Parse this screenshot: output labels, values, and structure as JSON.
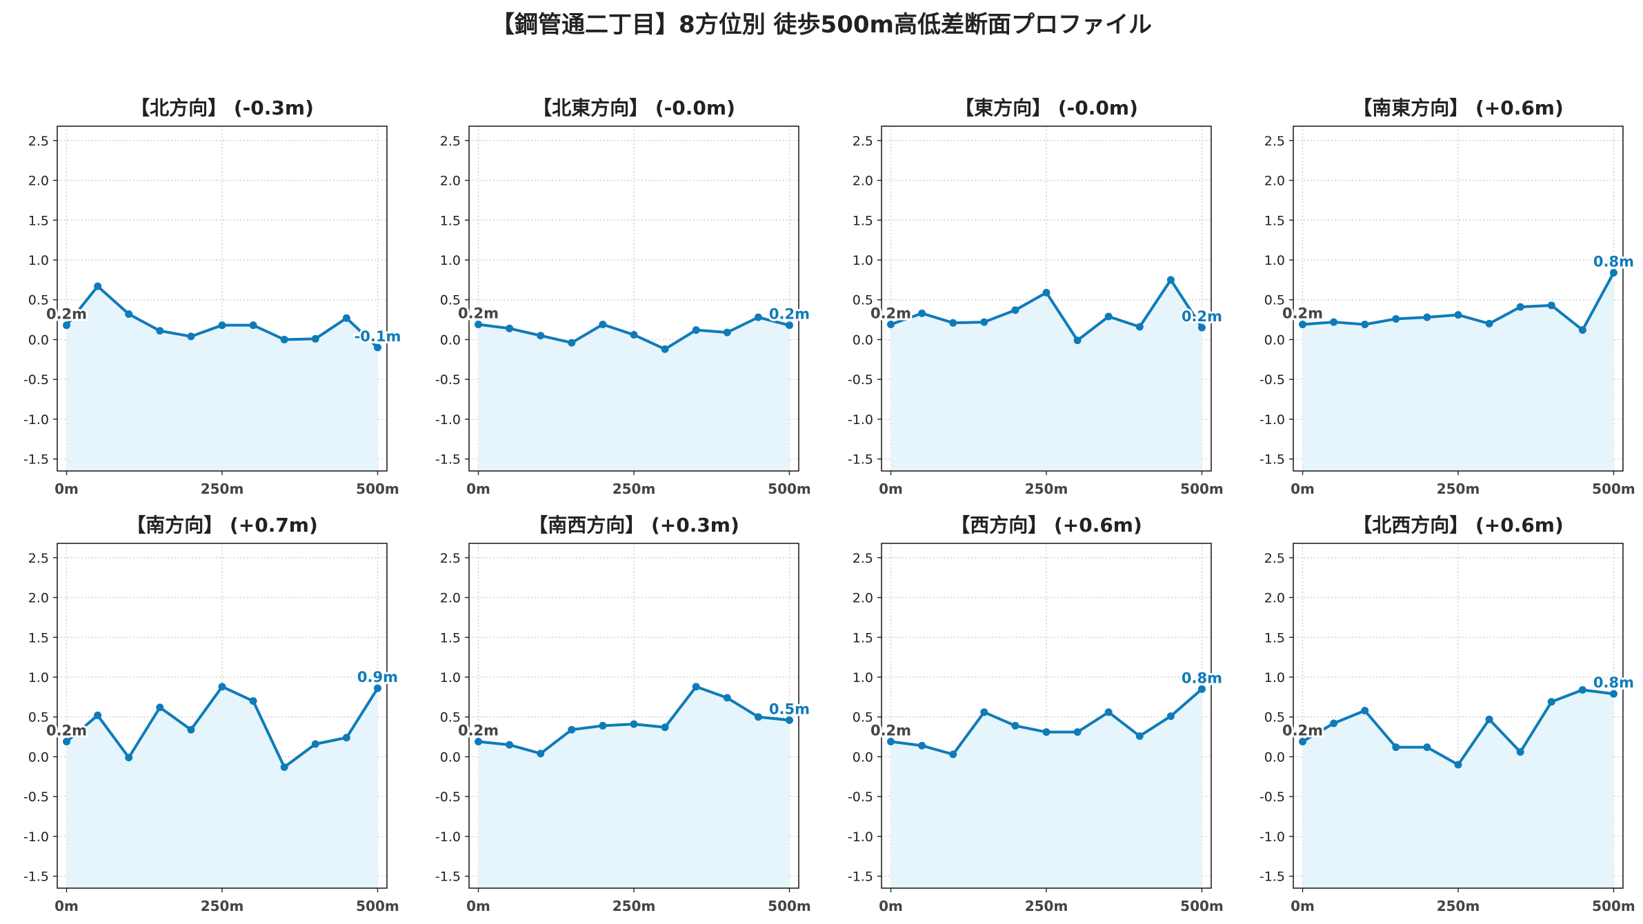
{
  "title": "【鋼管通二丁目】8方位別 徒歩500m高低差断面プロファイル",
  "colors": {
    "line": "#0f7bb8",
    "fill": "#e6f5fb",
    "grid": "#c8c8c8",
    "frame": "#222222"
  },
  "chart_data": [
    {
      "type": "area",
      "title": "【北方向】 (-0.3m)",
      "x": [
        0,
        50,
        100,
        150,
        200,
        250,
        300,
        350,
        400,
        450,
        500
      ],
      "values": [
        0.18,
        0.67,
        0.32,
        0.11,
        0.04,
        0.18,
        0.18,
        0.0,
        0.01,
        0.27,
        -0.1
      ],
      "start_label": "0.2m",
      "end_label": "-0.1m",
      "x_ticks": [
        "0m",
        "250m",
        "500m"
      ],
      "y_ticks": [
        "-1.5",
        "-1.0",
        "-0.5",
        "0.0",
        "0.5",
        "1.0",
        "1.5",
        "2.0",
        "2.5"
      ],
      "xlim": [
        -15,
        515
      ],
      "ylim": [
        -1.65,
        2.68
      ],
      "grid": true
    },
    {
      "type": "area",
      "title": "【北東方向】 (-0.0m)",
      "x": [
        0,
        50,
        100,
        150,
        200,
        250,
        300,
        350,
        400,
        450,
        500
      ],
      "values": [
        0.19,
        0.14,
        0.05,
        -0.04,
        0.19,
        0.06,
        -0.12,
        0.12,
        0.09,
        0.28,
        0.18
      ],
      "start_label": "0.2m",
      "end_label": "0.2m",
      "x_ticks": [
        "0m",
        "250m",
        "500m"
      ],
      "y_ticks": [
        "-1.5",
        "-1.0",
        "-0.5",
        "0.0",
        "0.5",
        "1.0",
        "1.5",
        "2.0",
        "2.5"
      ],
      "xlim": [
        -15,
        515
      ],
      "ylim": [
        -1.65,
        2.68
      ],
      "grid": true
    },
    {
      "type": "area",
      "title": "【東方向】 (-0.0m)",
      "x": [
        0,
        50,
        100,
        150,
        200,
        250,
        300,
        350,
        400,
        450,
        500
      ],
      "values": [
        0.19,
        0.33,
        0.21,
        0.22,
        0.37,
        0.59,
        -0.01,
        0.29,
        0.16,
        0.75,
        0.15
      ],
      "start_label": "0.2m",
      "end_label": "0.2m",
      "x_ticks": [
        "0m",
        "250m",
        "500m"
      ],
      "y_ticks": [
        "-1.5",
        "-1.0",
        "-0.5",
        "0.0",
        "0.5",
        "1.0",
        "1.5",
        "2.0",
        "2.5"
      ],
      "xlim": [
        -15,
        515
      ],
      "ylim": [
        -1.65,
        2.68
      ],
      "grid": true
    },
    {
      "type": "area",
      "title": "【南東方向】 (+0.6m)",
      "x": [
        0,
        50,
        100,
        150,
        200,
        250,
        300,
        350,
        400,
        450,
        500
      ],
      "values": [
        0.19,
        0.22,
        0.19,
        0.26,
        0.28,
        0.31,
        0.2,
        0.41,
        0.43,
        0.12,
        0.84
      ],
      "start_label": "0.2m",
      "end_label": "0.8m",
      "x_ticks": [
        "0m",
        "250m",
        "500m"
      ],
      "y_ticks": [
        "-1.5",
        "-1.0",
        "-0.5",
        "0.0",
        "0.5",
        "1.0",
        "1.5",
        "2.0",
        "2.5"
      ],
      "xlim": [
        -15,
        515
      ],
      "ylim": [
        -1.65,
        2.68
      ],
      "grid": true
    },
    {
      "type": "area",
      "title": "【南方向】 (+0.7m)",
      "x": [
        0,
        50,
        100,
        150,
        200,
        250,
        300,
        350,
        400,
        450,
        500
      ],
      "values": [
        0.19,
        0.52,
        -0.01,
        0.62,
        0.34,
        0.88,
        0.7,
        -0.13,
        0.16,
        0.24,
        0.86
      ],
      "start_label": "0.2m",
      "end_label": "0.9m",
      "x_ticks": [
        "0m",
        "250m",
        "500m"
      ],
      "y_ticks": [
        "-1.5",
        "-1.0",
        "-0.5",
        "0.0",
        "0.5",
        "1.0",
        "1.5",
        "2.0",
        "2.5"
      ],
      "xlim": [
        -15,
        515
      ],
      "ylim": [
        -1.65,
        2.68
      ],
      "grid": true
    },
    {
      "type": "area",
      "title": "【南西方向】 (+0.3m)",
      "x": [
        0,
        50,
        100,
        150,
        200,
        250,
        300,
        350,
        400,
        450,
        500
      ],
      "values": [
        0.19,
        0.15,
        0.04,
        0.34,
        0.39,
        0.41,
        0.37,
        0.88,
        0.74,
        0.5,
        0.46
      ],
      "start_label": "0.2m",
      "end_label": "0.5m",
      "x_ticks": [
        "0m",
        "250m",
        "500m"
      ],
      "y_ticks": [
        "-1.5",
        "-1.0",
        "-0.5",
        "0.0",
        "0.5",
        "1.0",
        "1.5",
        "2.0",
        "2.5"
      ],
      "xlim": [
        -15,
        515
      ],
      "ylim": [
        -1.65,
        2.68
      ],
      "grid": true
    },
    {
      "type": "area",
      "title": "【西方向】 (+0.6m)",
      "x": [
        0,
        50,
        100,
        150,
        200,
        250,
        300,
        350,
        400,
        450,
        500
      ],
      "values": [
        0.19,
        0.14,
        0.03,
        0.56,
        0.39,
        0.31,
        0.31,
        0.56,
        0.26,
        0.51,
        0.85
      ],
      "start_label": "0.2m",
      "end_label": "0.8m",
      "x_ticks": [
        "0m",
        "250m",
        "500m"
      ],
      "y_ticks": [
        "-1.5",
        "-1.0",
        "-0.5",
        "0.0",
        "0.5",
        "1.0",
        "1.5",
        "2.0",
        "2.5"
      ],
      "xlim": [
        -15,
        515
      ],
      "ylim": [
        -1.65,
        2.68
      ],
      "grid": true
    },
    {
      "type": "area",
      "title": "【北西方向】 (+0.6m)",
      "x": [
        0,
        50,
        100,
        150,
        200,
        250,
        300,
        350,
        400,
        450,
        500
      ],
      "values": [
        0.19,
        0.42,
        0.58,
        0.12,
        0.12,
        -0.1,
        0.47,
        0.06,
        0.69,
        0.84,
        0.79
      ],
      "start_label": "0.2m",
      "end_label": "0.8m",
      "x_ticks": [
        "0m",
        "250m",
        "500m"
      ],
      "y_ticks": [
        "-1.5",
        "-1.0",
        "-0.5",
        "0.0",
        "0.5",
        "1.0",
        "1.5",
        "2.0",
        "2.5"
      ],
      "xlim": [
        -15,
        515
      ],
      "ylim": [
        -1.65,
        2.68
      ],
      "grid": true
    }
  ]
}
